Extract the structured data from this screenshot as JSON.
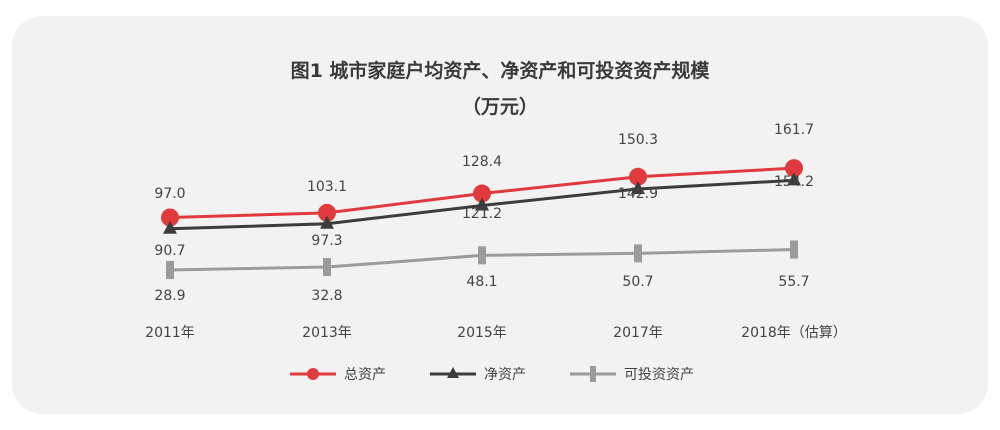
{
  "chart_data": {
    "type": "line",
    "title": "图1  城市家庭户均资产、净资产和可投资资产规模",
    "subtitle": "（万元）",
    "categories": [
      "2011年",
      "2013年",
      "2015年",
      "2017年",
      "2018年（估算）"
    ],
    "series": [
      {
        "name": "总资产",
        "values": [
          97.0,
          103.1,
          128.4,
          150.3,
          161.7
        ],
        "color": "#e03a3e",
        "marker": "circle"
      },
      {
        "name": "净资产",
        "values": [
          90.7,
          97.3,
          121.2,
          142.9,
          154.2
        ],
        "color": "#3c3c3c",
        "marker": "triangle"
      },
      {
        "name": "可投资资产",
        "values": [
          28.9,
          32.8,
          48.1,
          50.7,
          55.7
        ],
        "color": "#9b9b9b",
        "marker": "bar"
      }
    ],
    "data_labels": {
      "总资产": [
        "97.0",
        "103.1",
        "128.4",
        "150.3",
        "161.7"
      ],
      "净资产": [
        "90.7",
        "97.3",
        "121.2",
        "142.9",
        "154.2"
      ],
      "可投资资产": [
        "28.9",
        "32.8",
        "48.1",
        "50.7",
        "55.7"
      ]
    },
    "legend_position": "bottom-center",
    "grid": false
  }
}
